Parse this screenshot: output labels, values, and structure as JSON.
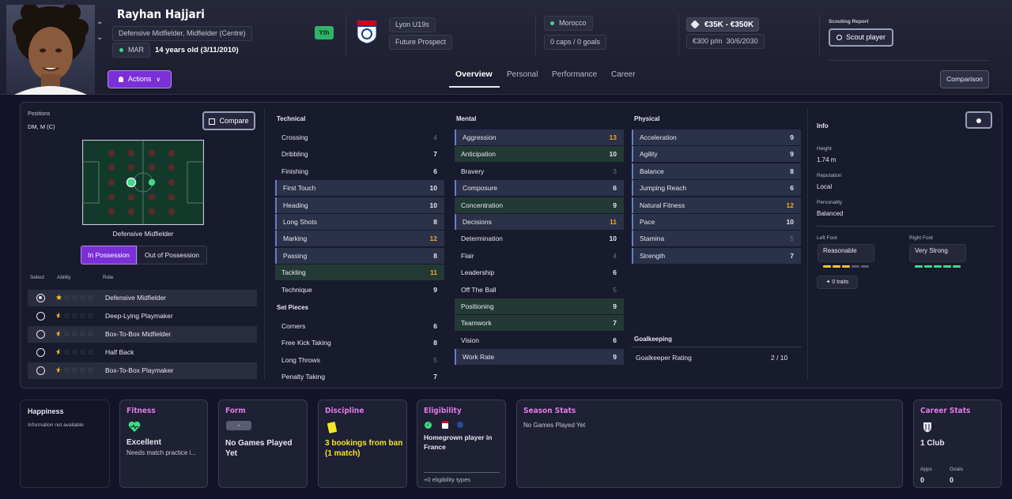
{
  "header": {
    "name": "Rayhan Hajjari",
    "positions": "Defensive Midfielder, Midfielder (Centre)",
    "nation_code": "MAR",
    "age": "14 years old (3/11/2010)",
    "squad_badge": "Yth",
    "club": "Lyon U19s",
    "status": "Future Prospect",
    "nation": "Morocco",
    "caps": "0 caps / 0 goals",
    "value": "€35K - €350K",
    "wage": "€300 p/m",
    "contract": "30/6/2030",
    "scouting_report_label": "Scouting Report",
    "scout_button": "Scout player",
    "actions_button": "Actions",
    "comparison_button": "Comparison",
    "tabs": [
      "Overview",
      "Personal",
      "Performance",
      "Career"
    ]
  },
  "left": {
    "positions_label": "Positions",
    "positions_value": "DM, M (C)",
    "compare_button": "Compare",
    "pitch_role": "Defensive Midfielder",
    "in_possession": "In Possession",
    "out_possession": "Out of Possession",
    "col_select": "Select",
    "col_ability": "Ability",
    "col_role": "Role",
    "roles": [
      {
        "name": "Defensive Midfielder",
        "stars": 1.0
      },
      {
        "name": "Deep-Lying Playmaker",
        "stars": 0.5
      },
      {
        "name": "Box-To-Box Midfielder",
        "stars": 0.5
      },
      {
        "name": "Half Back",
        "stars": 0.5
      },
      {
        "name": "Box-To-Box Playmaker",
        "stars": 0.5
      }
    ]
  },
  "technical": {
    "title": "Technical",
    "items": [
      {
        "name": "Crossing",
        "value": "4"
      },
      {
        "name": "Dribbling",
        "value": "7"
      },
      {
        "name": "Finishing",
        "value": "6"
      },
      {
        "name": "First Touch",
        "value": "10"
      },
      {
        "name": "Heading",
        "value": "10"
      },
      {
        "name": "Long Shots",
        "value": "8"
      },
      {
        "name": "Marking",
        "value": "12"
      },
      {
        "name": "Passing",
        "value": "8"
      },
      {
        "name": "Tackling",
        "value": "11"
      },
      {
        "name": "Technique",
        "value": "9"
      }
    ]
  },
  "set_pieces": {
    "title": "Set Pieces",
    "items": [
      {
        "name": "Corners",
        "value": "6"
      },
      {
        "name": "Free Kick Taking",
        "value": "8"
      },
      {
        "name": "Long Throws",
        "value": "5"
      },
      {
        "name": "Penalty Taking",
        "value": "7"
      }
    ]
  },
  "mental": {
    "title": "Mental",
    "items": [
      {
        "name": "Aggression",
        "value": "13"
      },
      {
        "name": "Anticipation",
        "value": "10"
      },
      {
        "name": "Bravery",
        "value": "3"
      },
      {
        "name": "Composure",
        "value": "6"
      },
      {
        "name": "Concentration",
        "value": "9"
      },
      {
        "name": "Decisions",
        "value": "11"
      },
      {
        "name": "Determination",
        "value": "10"
      },
      {
        "name": "Flair",
        "value": "4"
      },
      {
        "name": "Leadership",
        "value": "6"
      },
      {
        "name": "Off The Ball",
        "value": "5"
      },
      {
        "name": "Positioning",
        "value": "9"
      },
      {
        "name": "Teamwork",
        "value": "7"
      },
      {
        "name": "Vision",
        "value": "6"
      },
      {
        "name": "Work Rate",
        "value": "9"
      }
    ]
  },
  "physical": {
    "title": "Physical",
    "items": [
      {
        "name": "Acceleration",
        "value": "9"
      },
      {
        "name": "Agility",
        "value": "9"
      },
      {
        "name": "Balance",
        "value": "8"
      },
      {
        "name": "Jumping Reach",
        "value": "6"
      },
      {
        "name": "Natural Fitness",
        "value": "12"
      },
      {
        "name": "Pace",
        "value": "10"
      },
      {
        "name": "Stamina",
        "value": "5"
      },
      {
        "name": "Strength",
        "value": "7"
      }
    ]
  },
  "goalkeeping": {
    "title": "Goalkeeping",
    "label": "Goalkeeper Rating",
    "value": "2 / 10"
  },
  "info": {
    "title": "Info",
    "height_label": "Height",
    "height": "1.74 m",
    "reputation_label": "Reputation",
    "reputation": "Local",
    "personality_label": "Personality",
    "personality": "Balanced",
    "left_foot_label": "Left Foot",
    "left_foot": "Reasonable",
    "right_foot_label": "Right Foot",
    "right_foot": "Very Strong",
    "traits": "0 traits"
  },
  "cards": {
    "happiness_title": "Happiness",
    "happiness_text": "Information not available",
    "fitness_title": "Fitness",
    "fitness_value": "Excellent",
    "fitness_note": "Needs match practice i...",
    "form_title": "Form",
    "form_badge": "-",
    "form_text": "No Games Played Yet",
    "discipline_title": "Discipline",
    "discipline_text": "3 bookings from ban (1 match)",
    "eligibility_title": "Eligibility",
    "eligibility_text": "Homegrown player in France",
    "eligibility_more": "+0 eligibility types",
    "season_title": "Season Stats",
    "season_text": "No Games Played Yet",
    "career_title": "Career Stats",
    "career_clubs": "1 Club",
    "apps_label": "Apps",
    "apps_value": "0",
    "goals_label": "Goals",
    "goals_value": "0"
  },
  "colors": {
    "accent_purple": "#7b2fd6",
    "orange": "#f5a623",
    "green": "#3ddc84",
    "pink_title": "#e07be6",
    "yth_badge": "#2fb36a"
  }
}
